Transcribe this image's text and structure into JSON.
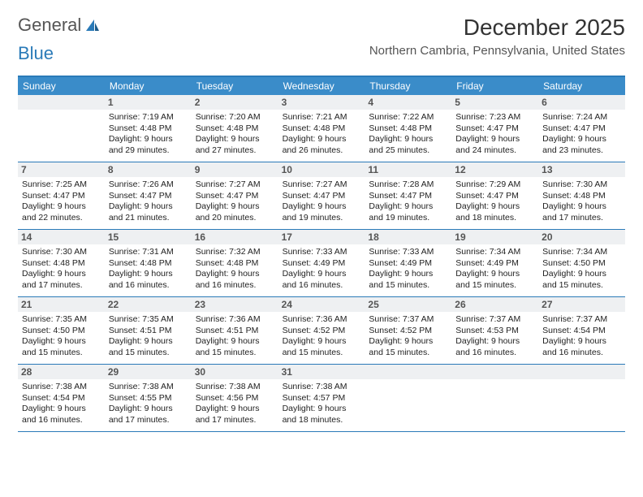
{
  "logo": {
    "text_general": "General",
    "text_blue": "Blue"
  },
  "title": "December 2025",
  "location": "Northern Cambria, Pennsylvania, United States",
  "colors": {
    "header_bg": "#3a8cc9",
    "border": "#2a7ab8",
    "daynum_bg": "#eef0f2",
    "text": "#333333"
  },
  "day_names": [
    "Sunday",
    "Monday",
    "Tuesday",
    "Wednesday",
    "Thursday",
    "Friday",
    "Saturday"
  ],
  "weeks": [
    [
      null,
      {
        "n": "1",
        "sr": "7:19 AM",
        "ss": "4:48 PM",
        "dl": "9 hours and 29 minutes."
      },
      {
        "n": "2",
        "sr": "7:20 AM",
        "ss": "4:48 PM",
        "dl": "9 hours and 27 minutes."
      },
      {
        "n": "3",
        "sr": "7:21 AM",
        "ss": "4:48 PM",
        "dl": "9 hours and 26 minutes."
      },
      {
        "n": "4",
        "sr": "7:22 AM",
        "ss": "4:48 PM",
        "dl": "9 hours and 25 minutes."
      },
      {
        "n": "5",
        "sr": "7:23 AM",
        "ss": "4:47 PM",
        "dl": "9 hours and 24 minutes."
      },
      {
        "n": "6",
        "sr": "7:24 AM",
        "ss": "4:47 PM",
        "dl": "9 hours and 23 minutes."
      }
    ],
    [
      {
        "n": "7",
        "sr": "7:25 AM",
        "ss": "4:47 PM",
        "dl": "9 hours and 22 minutes."
      },
      {
        "n": "8",
        "sr": "7:26 AM",
        "ss": "4:47 PM",
        "dl": "9 hours and 21 minutes."
      },
      {
        "n": "9",
        "sr": "7:27 AM",
        "ss": "4:47 PM",
        "dl": "9 hours and 20 minutes."
      },
      {
        "n": "10",
        "sr": "7:27 AM",
        "ss": "4:47 PM",
        "dl": "9 hours and 19 minutes."
      },
      {
        "n": "11",
        "sr": "7:28 AM",
        "ss": "4:47 PM",
        "dl": "9 hours and 19 minutes."
      },
      {
        "n": "12",
        "sr": "7:29 AM",
        "ss": "4:47 PM",
        "dl": "9 hours and 18 minutes."
      },
      {
        "n": "13",
        "sr": "7:30 AM",
        "ss": "4:48 PM",
        "dl": "9 hours and 17 minutes."
      }
    ],
    [
      {
        "n": "14",
        "sr": "7:30 AM",
        "ss": "4:48 PM",
        "dl": "9 hours and 17 minutes."
      },
      {
        "n": "15",
        "sr": "7:31 AM",
        "ss": "4:48 PM",
        "dl": "9 hours and 16 minutes."
      },
      {
        "n": "16",
        "sr": "7:32 AM",
        "ss": "4:48 PM",
        "dl": "9 hours and 16 minutes."
      },
      {
        "n": "17",
        "sr": "7:33 AM",
        "ss": "4:49 PM",
        "dl": "9 hours and 16 minutes."
      },
      {
        "n": "18",
        "sr": "7:33 AM",
        "ss": "4:49 PM",
        "dl": "9 hours and 15 minutes."
      },
      {
        "n": "19",
        "sr": "7:34 AM",
        "ss": "4:49 PM",
        "dl": "9 hours and 15 minutes."
      },
      {
        "n": "20",
        "sr": "7:34 AM",
        "ss": "4:50 PM",
        "dl": "9 hours and 15 minutes."
      }
    ],
    [
      {
        "n": "21",
        "sr": "7:35 AM",
        "ss": "4:50 PM",
        "dl": "9 hours and 15 minutes."
      },
      {
        "n": "22",
        "sr": "7:35 AM",
        "ss": "4:51 PM",
        "dl": "9 hours and 15 minutes."
      },
      {
        "n": "23",
        "sr": "7:36 AM",
        "ss": "4:51 PM",
        "dl": "9 hours and 15 minutes."
      },
      {
        "n": "24",
        "sr": "7:36 AM",
        "ss": "4:52 PM",
        "dl": "9 hours and 15 minutes."
      },
      {
        "n": "25",
        "sr": "7:37 AM",
        "ss": "4:52 PM",
        "dl": "9 hours and 15 minutes."
      },
      {
        "n": "26",
        "sr": "7:37 AM",
        "ss": "4:53 PM",
        "dl": "9 hours and 16 minutes."
      },
      {
        "n": "27",
        "sr": "7:37 AM",
        "ss": "4:54 PM",
        "dl": "9 hours and 16 minutes."
      }
    ],
    [
      {
        "n": "28",
        "sr": "7:38 AM",
        "ss": "4:54 PM",
        "dl": "9 hours and 16 minutes."
      },
      {
        "n": "29",
        "sr": "7:38 AM",
        "ss": "4:55 PM",
        "dl": "9 hours and 17 minutes."
      },
      {
        "n": "30",
        "sr": "7:38 AM",
        "ss": "4:56 PM",
        "dl": "9 hours and 17 minutes."
      },
      {
        "n": "31",
        "sr": "7:38 AM",
        "ss": "4:57 PM",
        "dl": "9 hours and 18 minutes."
      },
      null,
      null,
      null
    ]
  ],
  "labels": {
    "sunrise": "Sunrise:",
    "sunset": "Sunset:",
    "daylight": "Daylight:"
  }
}
